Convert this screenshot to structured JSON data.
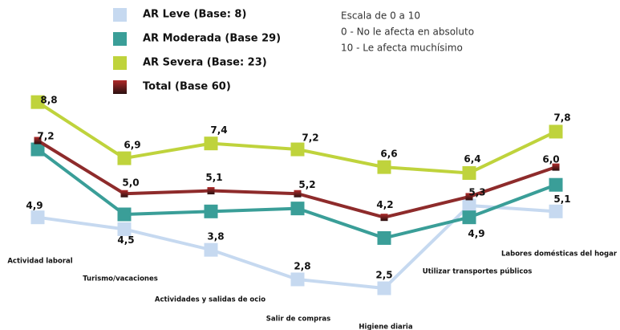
{
  "chart_data": {
    "type": "line",
    "annotations": [
      "Escala de 0 a 10",
      "0 - No le afecta en absoluto",
      "10 - Le afecta muchísimo"
    ],
    "categories": [
      "Actividad laboral",
      "Turismo/vacaciones",
      "Actividades y salidas de ocio",
      "Salir de compras",
      "Higiene diaria",
      "Utilizar transportes públicos",
      "Labores domésticas del hogar"
    ],
    "series": [
      {
        "name": "AR Leve (Base: 8)",
        "color": "#c6d9f0",
        "values": [
          4.9,
          4.5,
          3.8,
          2.8,
          2.5,
          5.3,
          5.1
        ],
        "value_labels": [
          "4,9",
          "4,5",
          "3,8",
          "2,8",
          "2,5",
          "5,3",
          "5,1"
        ]
      },
      {
        "name": "AR Moderada (Base 29)",
        "color": "#3a9e98",
        "values": [
          7.2,
          5.0,
          5.1,
          5.2,
          4.2,
          4.9,
          6.0
        ],
        "value_labels": [
          "7,2",
          "5,0",
          "5,1",
          "5,2",
          "4,2",
          "4,9",
          "6,0"
        ]
      },
      {
        "name": "AR Severa (Base: 23)",
        "color": "#bfd33c",
        "values": [
          8.8,
          6.9,
          7.4,
          7.2,
          6.6,
          6.4,
          7.8
        ],
        "value_labels": [
          "8,8",
          "6,9",
          "7,4",
          "7,2",
          "6,6",
          "6,4",
          "7,8"
        ]
      },
      {
        "name": "Total (Base 60)",
        "color": "#8e2b2b",
        "values": [
          7.5,
          5.7,
          5.8,
          5.7,
          4.9,
          5.6,
          6.6
        ]
      }
    ]
  }
}
